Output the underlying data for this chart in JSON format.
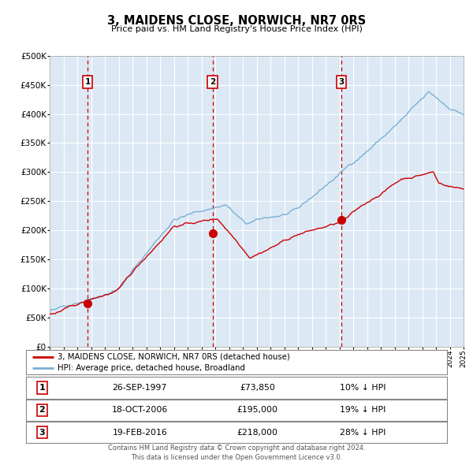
{
  "title": "3, MAIDENS CLOSE, NORWICH, NR7 0RS",
  "subtitle": "Price paid vs. HM Land Registry's House Price Index (HPI)",
  "fig_bg_color": "#ffffff",
  "plot_bg_color": "#dce9f5",
  "red_line_label": "3, MAIDENS CLOSE, NORWICH, NR7 0RS (detached house)",
  "blue_line_label": "HPI: Average price, detached house, Broadland",
  "red_color": "#cc0000",
  "blue_color": "#7bafd4",
  "grid_color": "#ffffff",
  "ylim": [
    0,
    500000
  ],
  "ytick_vals": [
    0,
    50000,
    100000,
    150000,
    200000,
    250000,
    300000,
    350000,
    400000,
    450000,
    500000
  ],
  "ytick_labels": [
    "£0",
    "£50K",
    "£100K",
    "£150K",
    "£200K",
    "£250K",
    "£300K",
    "£350K",
    "£400K",
    "£450K",
    "£500K"
  ],
  "xmin": 1995,
  "xmax": 2025,
  "footer_text": "Contains HM Land Registry data © Crown copyright and database right 2024.\nThis data is licensed under the Open Government Licence v3.0.",
  "sales": [
    {
      "num": 1,
      "date_str": "26-SEP-1997",
      "date_x": 1997.74,
      "price": 73850,
      "hpi_pct": "10%"
    },
    {
      "num": 2,
      "date_str": "18-OCT-2006",
      "date_x": 2006.8,
      "price": 195000,
      "hpi_pct": "19%"
    },
    {
      "num": 3,
      "date_str": "19-FEB-2016",
      "date_x": 2016.13,
      "price": 218000,
      "hpi_pct": "28%"
    }
  ]
}
